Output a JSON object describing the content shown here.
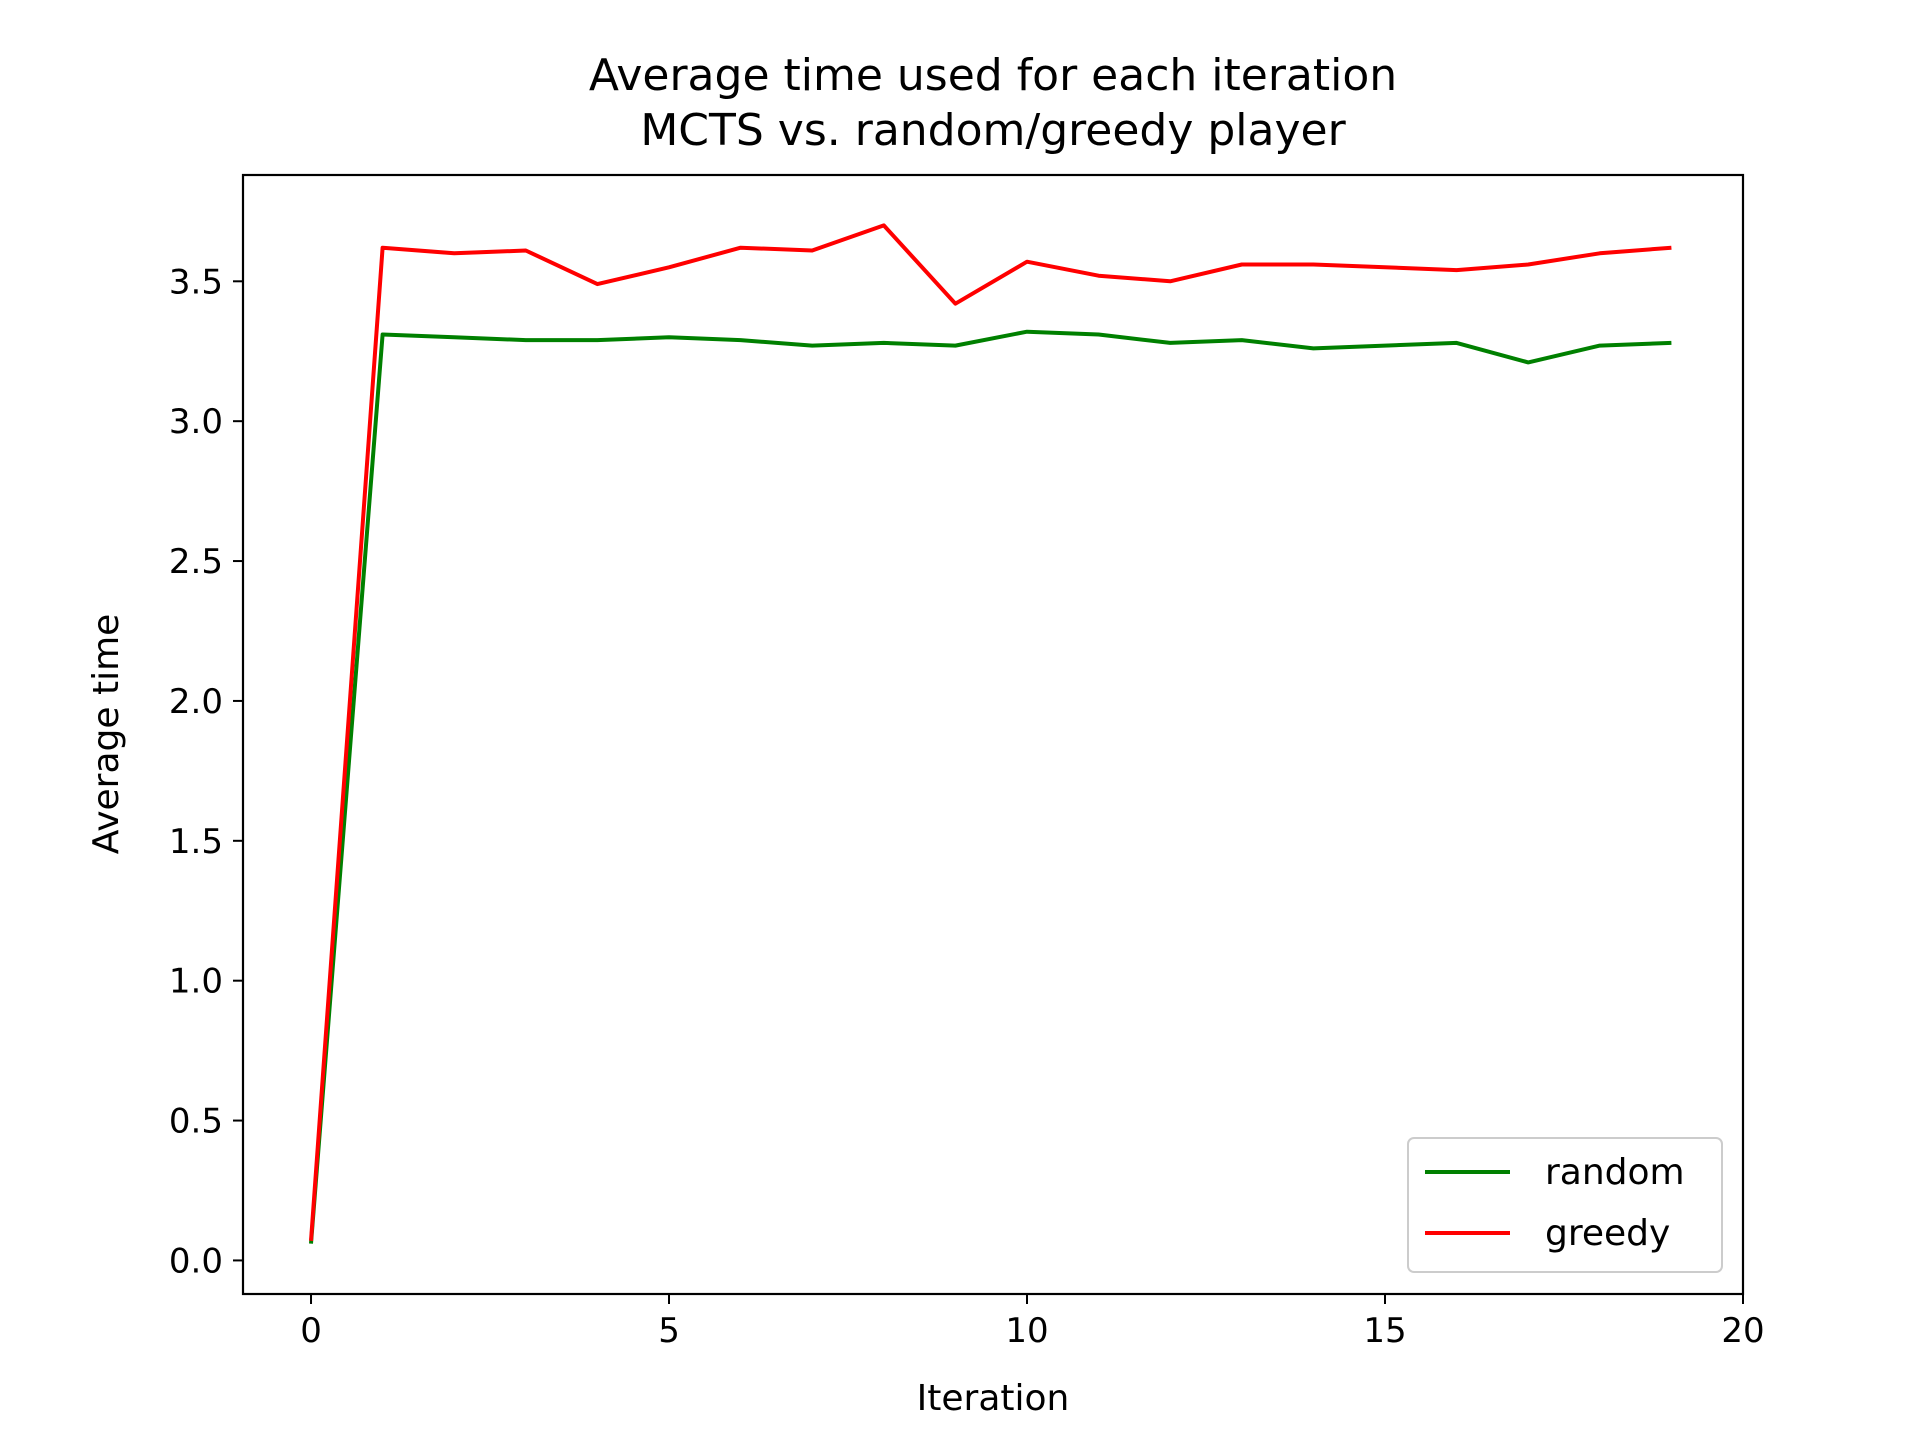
{
  "chart_data": {
    "type": "line",
    "title": "Average time used for each iteration",
    "subtitle": "MCTS vs. random/greedy player",
    "xlabel": "Iteration",
    "ylabel": "Average time",
    "xlim": [
      -0.95,
      20
    ],
    "ylim": [
      -0.12,
      3.88
    ],
    "xticks": [
      {
        "value": 0,
        "label": "0"
      },
      {
        "value": 5,
        "label": "5"
      },
      {
        "value": 10,
        "label": "10"
      },
      {
        "value": 15,
        "label": "15"
      },
      {
        "value": 20,
        "label": "20"
      }
    ],
    "yticks": [
      {
        "value": 0.0,
        "label": "0.0"
      },
      {
        "value": 0.5,
        "label": "0.5"
      },
      {
        "value": 1.0,
        "label": "1.0"
      },
      {
        "value": 1.5,
        "label": "1.5"
      },
      {
        "value": 2.0,
        "label": "2.0"
      },
      {
        "value": 2.5,
        "label": "2.5"
      },
      {
        "value": 3.0,
        "label": "3.0"
      },
      {
        "value": 3.5,
        "label": "3.5"
      }
    ],
    "grid": false,
    "legend_position": "lower right",
    "x": [
      0,
      1,
      2,
      3,
      4,
      5,
      6,
      7,
      8,
      9,
      10,
      11,
      12,
      13,
      14,
      15,
      16,
      17,
      18,
      19
    ],
    "series": [
      {
        "name": "random",
        "color": "#008000",
        "values": [
          0.06,
          3.31,
          3.3,
          3.29,
          3.29,
          3.3,
          3.29,
          3.27,
          3.28,
          3.27,
          3.32,
          3.31,
          3.28,
          3.29,
          3.26,
          3.27,
          3.28,
          3.21,
          3.27,
          3.28
        ]
      },
      {
        "name": "greedy",
        "color": "#ff0000",
        "values": [
          0.07,
          3.62,
          3.6,
          3.61,
          3.49,
          3.55,
          3.62,
          3.61,
          3.7,
          3.42,
          3.57,
          3.52,
          3.5,
          3.56,
          3.56,
          3.55,
          3.54,
          3.56,
          3.6,
          3.62
        ]
      }
    ]
  }
}
